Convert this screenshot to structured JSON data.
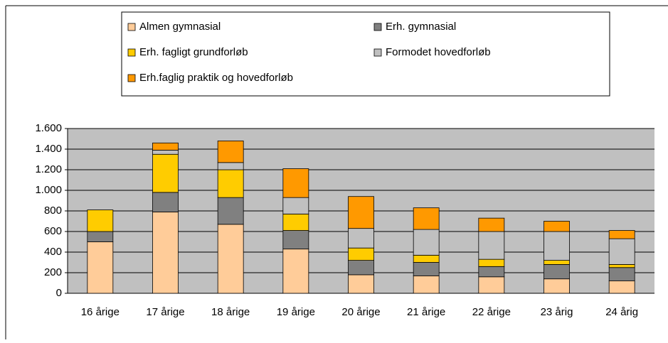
{
  "chart_data": {
    "type": "stacked_bar",
    "categories": [
      "16 årige",
      "17 årige",
      "18 årige",
      "19 årige",
      "20 årige",
      "21 årige",
      "22 årige",
      "23 årig",
      "24 årig"
    ],
    "series": [
      {
        "name": "Almen gymnasial",
        "color": "#ffcc99",
        "values": [
          500,
          790,
          670,
          430,
          180,
          170,
          160,
          140,
          120
        ]
      },
      {
        "name": "Erh. gymnasial",
        "color": "#808080",
        "values": [
          100,
          190,
          260,
          180,
          140,
          130,
          100,
          140,
          130
        ]
      },
      {
        "name": "Erh. fagligt grundforløb",
        "color": "#ffcc00",
        "values": [
          210,
          370,
          270,
          160,
          120,
          70,
          70,
          40,
          30
        ]
      },
      {
        "name": "Formodet hovedforløb",
        "color": "#c0c0c0",
        "values": [
          0,
          40,
          70,
          160,
          190,
          250,
          270,
          280,
          250
        ]
      },
      {
        "name": "Erh.faglig praktik og hovedforløb",
        "color": "#ff9900",
        "values": [
          0,
          70,
          210,
          280,
          310,
          210,
          130,
          100,
          80
        ]
      }
    ],
    "ylim": [
      0,
      1600
    ],
    "yticks": [
      0,
      200,
      400,
      600,
      800,
      {
        "value": 1000,
        "label": "1.000"
      },
      {
        "value": 1200,
        "label": "1.200"
      },
      {
        "value": 1400,
        "label": "1.400"
      },
      {
        "value": 1600,
        "label": "1.600"
      }
    ],
    "grid": true,
    "legend": "top"
  }
}
